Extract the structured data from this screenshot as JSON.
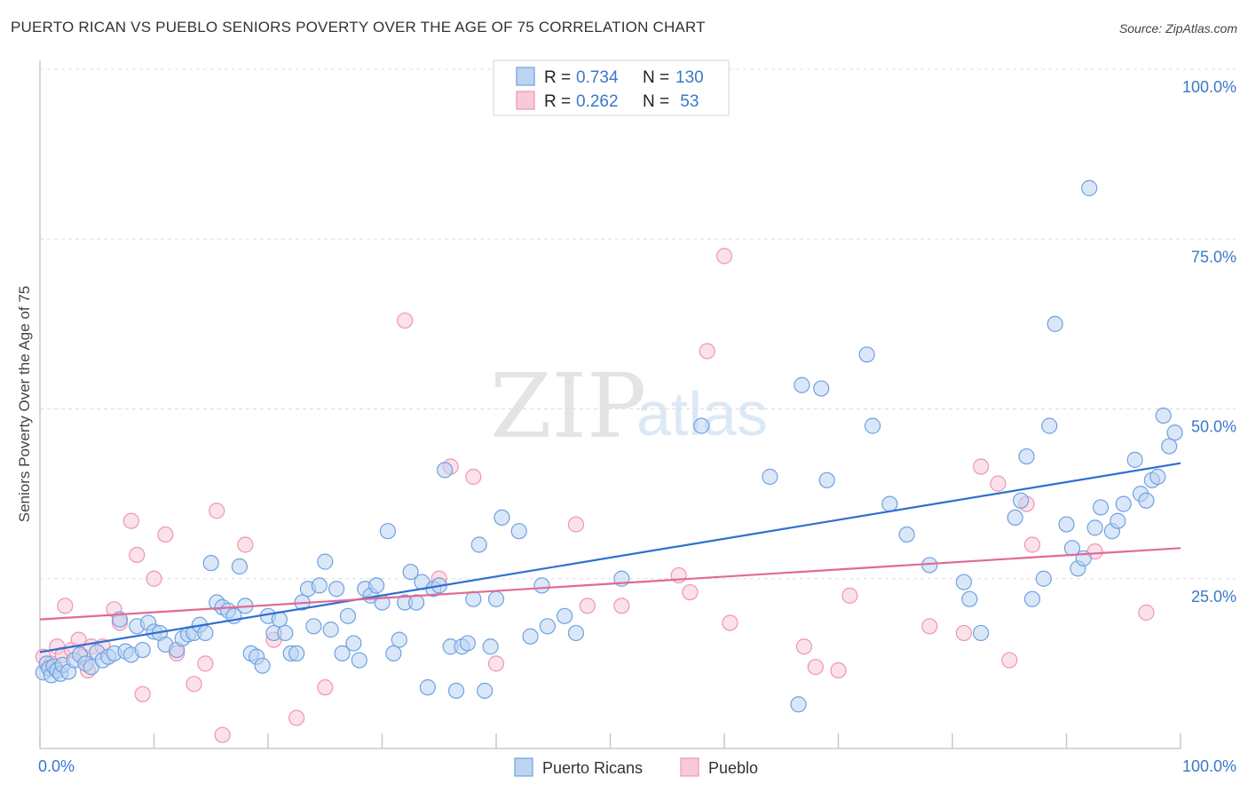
{
  "header": {
    "title": "PUERTO RICAN VS PUEBLO SENIORS POVERTY OVER THE AGE OF 75 CORRELATION CHART",
    "source": "Source: ZipAtlas.com"
  },
  "watermark": {
    "part1": "ZIP",
    "part2": "atlas"
  },
  "legend": {
    "rows": [
      {
        "r_label": "R = ",
        "r_value": "0.734",
        "n_label": "N = ",
        "n_value": "130",
        "color": "#6fa1e0"
      },
      {
        "r_label": "R = ",
        "r_value": "0.262",
        "n_label": "N = ",
        "n_value": " 53",
        "color": "#f095b1"
      }
    ]
  },
  "chart_data": {
    "type": "scatter",
    "title": "PUERTO RICAN VS PUEBLO SENIORS POVERTY OVER THE AGE OF 75 CORRELATION CHART",
    "xlabel": "",
    "ylabel": "Seniors Poverty Over the Age of 75",
    "xlim": [
      0,
      100
    ],
    "ylim": [
      0,
      100
    ],
    "x_tick_labels": [
      "0.0%",
      "100.0%"
    ],
    "y_tick_labels": [
      "100.0%",
      "75.0%",
      "50.0%",
      "25.0%"
    ],
    "y_tick_values": [
      100,
      75,
      50,
      25
    ],
    "grid": true,
    "legend_position": "top-center and bottom-center",
    "series": [
      {
        "name": "Puerto Ricans",
        "color": "#6fa1e0",
        "fill": "#bcd4f2",
        "R": 0.734,
        "N": 130,
        "trend": {
          "x": [
            0,
            100
          ],
          "y": [
            14.2,
            42
          ]
        },
        "points": [
          [
            0.3,
            11.2
          ],
          [
            0.6,
            12.5
          ],
          [
            0.8,
            11.8
          ],
          [
            1.0,
            10.8
          ],
          [
            1.2,
            12.1
          ],
          [
            1.5,
            11.5
          ],
          [
            1.8,
            11.0
          ],
          [
            2.0,
            12.3
          ],
          [
            2.5,
            11.3
          ],
          [
            3.0,
            13.0
          ],
          [
            3.5,
            13.8
          ],
          [
            4.0,
            12.5
          ],
          [
            4.5,
            12.0
          ],
          [
            5.0,
            14.2
          ],
          [
            5.5,
            13.0
          ],
          [
            6.0,
            13.5
          ],
          [
            6.5,
            14.0
          ],
          [
            7.0,
            19.0
          ],
          [
            7.5,
            14.3
          ],
          [
            8.0,
            13.8
          ],
          [
            8.5,
            18.0
          ],
          [
            9.0,
            14.5
          ],
          [
            9.5,
            18.5
          ],
          [
            10.0,
            17.2
          ],
          [
            10.5,
            17.0
          ],
          [
            11.0,
            15.3
          ],
          [
            12.0,
            14.5
          ],
          [
            12.5,
            16.2
          ],
          [
            13.0,
            16.8
          ],
          [
            13.5,
            17.0
          ],
          [
            14.0,
            18.2
          ],
          [
            14.5,
            17.0
          ],
          [
            15.0,
            27.3
          ],
          [
            15.5,
            21.5
          ],
          [
            16.0,
            20.8
          ],
          [
            16.5,
            20.3
          ],
          [
            17.0,
            19.5
          ],
          [
            17.5,
            26.8
          ],
          [
            18.0,
            21.0
          ],
          [
            18.5,
            14.0
          ],
          [
            19.0,
            13.5
          ],
          [
            19.5,
            12.2
          ],
          [
            20.0,
            19.5
          ],
          [
            20.5,
            17.0
          ],
          [
            21.0,
            19.0
          ],
          [
            21.5,
            17.0
          ],
          [
            22.0,
            14.0
          ],
          [
            22.5,
            14.0
          ],
          [
            23.0,
            21.5
          ],
          [
            23.5,
            23.5
          ],
          [
            24.0,
            18.0
          ],
          [
            24.5,
            24.0
          ],
          [
            25.0,
            27.5
          ],
          [
            25.5,
            17.5
          ],
          [
            26.0,
            23.5
          ],
          [
            26.5,
            14.0
          ],
          [
            27.0,
            19.5
          ],
          [
            27.5,
            15.5
          ],
          [
            28.0,
            13.0
          ],
          [
            28.5,
            23.5
          ],
          [
            29.0,
            22.5
          ],
          [
            29.5,
            24.0
          ],
          [
            30.0,
            21.5
          ],
          [
            30.5,
            32.0
          ],
          [
            31.0,
            14.0
          ],
          [
            31.5,
            16.0
          ],
          [
            32.0,
            21.5
          ],
          [
            32.5,
            26.0
          ],
          [
            33.0,
            21.5
          ],
          [
            33.5,
            24.5
          ],
          [
            34.0,
            9.0
          ],
          [
            34.5,
            23.5
          ],
          [
            35.0,
            24.0
          ],
          [
            35.5,
            41.0
          ],
          [
            36.0,
            15.0
          ],
          [
            36.5,
            8.5
          ],
          [
            37.0,
            15.0
          ],
          [
            37.5,
            15.5
          ],
          [
            38.0,
            22.0
          ],
          [
            38.5,
            30.0
          ],
          [
            39.0,
            8.5
          ],
          [
            39.5,
            15.0
          ],
          [
            40.0,
            22.0
          ],
          [
            40.5,
            34.0
          ],
          [
            42.0,
            32.0
          ],
          [
            43.0,
            16.5
          ],
          [
            44.0,
            24.0
          ],
          [
            44.5,
            18.0
          ],
          [
            46.0,
            19.5
          ],
          [
            47.0,
            17.0
          ],
          [
            51.0,
            25.0
          ],
          [
            58.0,
            47.5
          ],
          [
            64.0,
            40.0
          ],
          [
            66.5,
            6.5
          ],
          [
            66.8,
            53.5
          ],
          [
            68.5,
            53.0
          ],
          [
            69.0,
            39.5
          ],
          [
            72.5,
            58.0
          ],
          [
            73.0,
            47.5
          ],
          [
            74.5,
            36.0
          ],
          [
            76.0,
            31.5
          ],
          [
            78.0,
            27.0
          ],
          [
            81.0,
            24.5
          ],
          [
            81.5,
            22.0
          ],
          [
            82.5,
            17.0
          ],
          [
            85.5,
            34.0
          ],
          [
            86.0,
            36.5
          ],
          [
            86.5,
            43.0
          ],
          [
            87.0,
            22.0
          ],
          [
            88.0,
            25.0
          ],
          [
            88.5,
            47.5
          ],
          [
            89.0,
            62.5
          ],
          [
            90.0,
            33.0
          ],
          [
            90.5,
            29.5
          ],
          [
            91.0,
            26.5
          ],
          [
            91.5,
            28.0
          ],
          [
            92.0,
            82.5
          ],
          [
            92.5,
            32.5
          ],
          [
            93.0,
            35.5
          ],
          [
            94.0,
            32.0
          ],
          [
            94.5,
            33.5
          ],
          [
            95.0,
            36.0
          ],
          [
            96.0,
            42.5
          ],
          [
            96.5,
            37.5
          ],
          [
            97.0,
            36.5
          ],
          [
            97.5,
            39.5
          ],
          [
            98.0,
            40.0
          ],
          [
            98.5,
            49.0
          ],
          [
            99.0,
            44.5
          ],
          [
            99.5,
            46.5
          ]
        ]
      },
      {
        "name": "Pueblo",
        "color": "#f095b1",
        "fill": "#f8c9d7",
        "R": 0.262,
        "N": 53,
        "trend": {
          "x": [
            0,
            100
          ],
          "y": [
            19,
            29.5
          ]
        },
        "points": [
          [
            0.3,
            13.5
          ],
          [
            1.0,
            12.5
          ],
          [
            1.5,
            15.0
          ],
          [
            2.0,
            13.8
          ],
          [
            2.2,
            21.0
          ],
          [
            2.8,
            14.5
          ],
          [
            3.4,
            16.0
          ],
          [
            3.8,
            13.5
          ],
          [
            4.2,
            11.5
          ],
          [
            4.5,
            15.0
          ],
          [
            5.5,
            15.0
          ],
          [
            6.5,
            20.5
          ],
          [
            7.0,
            18.5
          ],
          [
            8.0,
            33.5
          ],
          [
            8.5,
            28.5
          ],
          [
            9.0,
            8.0
          ],
          [
            10.0,
            25.0
          ],
          [
            11.0,
            31.5
          ],
          [
            12.0,
            14.0
          ],
          [
            13.5,
            9.5
          ],
          [
            14.5,
            12.5
          ],
          [
            15.5,
            35.0
          ],
          [
            16.0,
            2.0
          ],
          [
            18.0,
            30.0
          ],
          [
            20.5,
            16.0
          ],
          [
            22.5,
            4.5
          ],
          [
            25.0,
            9.0
          ],
          [
            32.0,
            63.0
          ],
          [
            35.0,
            25.0
          ],
          [
            36.0,
            41.5
          ],
          [
            38.0,
            40.0
          ],
          [
            40.0,
            12.5
          ],
          [
            47.0,
            33.0
          ],
          [
            48.0,
            21.0
          ],
          [
            51.0,
            21.0
          ],
          [
            56.0,
            25.5
          ],
          [
            57.0,
            23.0
          ],
          [
            58.5,
            58.5
          ],
          [
            60.0,
            72.5
          ],
          [
            60.5,
            18.5
          ],
          [
            67.0,
            15.0
          ],
          [
            68.0,
            12.0
          ],
          [
            70.0,
            11.5
          ],
          [
            71.0,
            22.5
          ],
          [
            78.0,
            18.0
          ],
          [
            81.0,
            17.0
          ],
          [
            82.5,
            41.5
          ],
          [
            84.0,
            39.0
          ],
          [
            85.0,
            13.0
          ],
          [
            86.5,
            36.0
          ],
          [
            87.0,
            30.0
          ],
          [
            92.5,
            29.0
          ],
          [
            97.0,
            20.0
          ]
        ]
      }
    ]
  },
  "bottom_legend": [
    {
      "label": "Puerto Ricans",
      "color": "#6fa1e0"
    },
    {
      "label": "Pueblo",
      "color": "#f095b1"
    }
  ]
}
